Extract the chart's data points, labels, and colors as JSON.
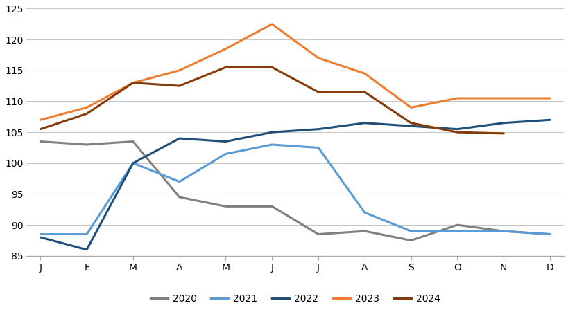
{
  "months": [
    "J",
    "F",
    "M",
    "A",
    "M",
    "J",
    "J",
    "A",
    "S",
    "O",
    "N",
    "D"
  ],
  "series_2020": [
    103.5,
    103.0,
    103.5,
    94.5,
    93.0,
    93.0,
    88.5,
    89.0,
    87.5,
    90.0,
    89.0,
    88.5
  ],
  "series_2021": [
    88.5,
    88.5,
    100.0,
    97.0,
    101.5,
    103.0,
    102.5,
    92.0,
    89.0,
    89.0,
    89.0,
    88.5
  ],
  "series_2022": [
    88.0,
    86.0,
    100.0,
    104.0,
    103.5,
    105.0,
    105.5,
    106.5,
    106.0,
    105.5,
    106.5,
    107.0
  ],
  "series_2023": [
    107.0,
    109.0,
    113.0,
    115.0,
    118.5,
    122.5,
    117.0,
    114.5,
    109.0,
    110.5,
    110.5,
    110.5
  ],
  "series_2024": [
    105.5,
    108.0,
    113.0,
    112.5,
    115.5,
    115.5,
    111.5,
    111.5,
    106.5,
    105.0,
    104.8,
    null
  ],
  "colors": {
    "2020": "#808080",
    "2021": "#5b9bd5",
    "2022": "#1f4e79",
    "2023": "#ed7d31",
    "2024": "#843c0c"
  },
  "ylim": [
    85,
    125
  ],
  "yticks": [
    85,
    90,
    95,
    100,
    105,
    110,
    115,
    120,
    125
  ],
  "background_color": "#ffffff",
  "grid_color": "#c8c8c8",
  "linewidth": 2.2,
  "legend_order": [
    "2020",
    "2021",
    "2022",
    "2023",
    "2024"
  ]
}
